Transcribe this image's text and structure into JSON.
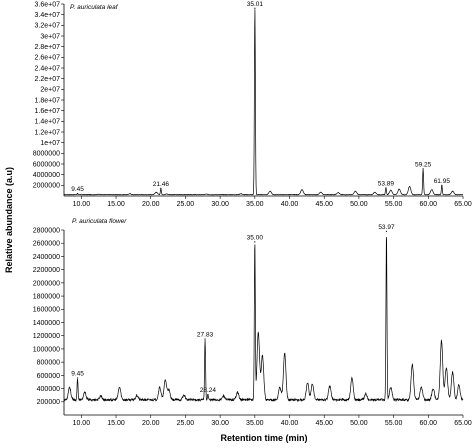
{
  "figure": {
    "ylabel": "Relative abundance (a.u)",
    "xlabel": "Retention time (min)"
  },
  "chart_data": [
    {
      "type": "line",
      "title": "P. auriculata leaf",
      "xlabel": "",
      "ylabel": "Relative abundance (a.u)",
      "xlim": [
        7.5,
        65.0
      ],
      "ylim": [
        0,
        36000000
      ],
      "x_ticks": [
        "10.00",
        "15.00",
        "20.00",
        "25.00",
        "30.00",
        "35.00",
        "40.00",
        "45.00",
        "50.00",
        "55.00",
        "60.00",
        "65.00"
      ],
      "y_ticks": [
        {
          "value": 2000000,
          "label": "2000000"
        },
        {
          "value": 4000000,
          "label": "4000000"
        },
        {
          "value": 6000000,
          "label": "6000000"
        },
        {
          "value": 8000000,
          "label": "8000000"
        },
        {
          "value": 10000000,
          "label": "1e+07"
        },
        {
          "value": 12000000,
          "label": "1.2e+07"
        },
        {
          "value": 14000000,
          "label": "1.4e+07"
        },
        {
          "value": 16000000,
          "label": "1.6e+07"
        },
        {
          "value": 18000000,
          "label": "1.8e+07"
        },
        {
          "value": 20000000,
          "label": "2e+07"
        },
        {
          "value": 22000000,
          "label": "2.2e+07"
        },
        {
          "value": 24000000,
          "label": "2.4e+07"
        },
        {
          "value": 26000000,
          "label": "2.6e+07"
        },
        {
          "value": 28000000,
          "label": "2.8e+07"
        },
        {
          "value": 30000000,
          "label": "3e+07"
        },
        {
          "value": 32000000,
          "label": "3.2e+07"
        },
        {
          "value": 34000000,
          "label": "3.4e+07"
        },
        {
          "value": 36000000,
          "label": "3.6e+07"
        }
      ],
      "baseline": 250000,
      "peaks": [
        {
          "x": 9.45,
          "y": 450000,
          "label": "9.45"
        },
        {
          "x": 21.46,
          "y": 1400000,
          "label": "21.46"
        },
        {
          "x": 35.01,
          "y": 35200000,
          "label": "35.01"
        },
        {
          "x": 53.89,
          "y": 1500000,
          "label": "53.89"
        },
        {
          "x": 59.25,
          "y": 5100000,
          "label": "59.25"
        },
        {
          "x": 61.95,
          "y": 2000000,
          "label": "61.95"
        }
      ],
      "minor_peaks": [
        {
          "x": 12.5,
          "y": 320000
        },
        {
          "x": 17.0,
          "y": 420000
        },
        {
          "x": 20.8,
          "y": 700000
        },
        {
          "x": 22.3,
          "y": 380000
        },
        {
          "x": 28.0,
          "y": 350000
        },
        {
          "x": 33.0,
          "y": 420000
        },
        {
          "x": 37.2,
          "y": 900000
        },
        {
          "x": 41.8,
          "y": 1200000
        },
        {
          "x": 44.5,
          "y": 700000
        },
        {
          "x": 47.0,
          "y": 650000
        },
        {
          "x": 49.5,
          "y": 900000
        },
        {
          "x": 52.3,
          "y": 700000
        },
        {
          "x": 54.6,
          "y": 1100000
        },
        {
          "x": 55.8,
          "y": 1300000
        },
        {
          "x": 57.3,
          "y": 1800000
        },
        {
          "x": 60.5,
          "y": 1200000
        },
        {
          "x": 63.5,
          "y": 900000
        }
      ]
    },
    {
      "type": "line",
      "title": "P. auriculata flower",
      "xlabel": "Retention time (min)",
      "ylabel": "Relative abundance (a.u)",
      "xlim": [
        7.5,
        65.0
      ],
      "ylim": [
        0,
        2800000
      ],
      "x_ticks": [
        "10.00",
        "15.00",
        "20.00",
        "25.00",
        "30.00",
        "35.00",
        "40.00",
        "45.00",
        "50.00",
        "55.00",
        "60.00",
        "65.00"
      ],
      "y_ticks": [
        {
          "value": 200000,
          "label": "200000"
        },
        {
          "value": 400000,
          "label": "400000"
        },
        {
          "value": 600000,
          "label": "600000"
        },
        {
          "value": 800000,
          "label": "800000"
        },
        {
          "value": 1000000,
          "label": "1000000"
        },
        {
          "value": 1200000,
          "label": "1200000"
        },
        {
          "value": 1400000,
          "label": "1400000"
        },
        {
          "value": 1600000,
          "label": "1600000"
        },
        {
          "value": 1800000,
          "label": "1800000"
        },
        {
          "value": 2000000,
          "label": "2000000"
        },
        {
          "value": 2200000,
          "label": "2200000"
        },
        {
          "value": 2400000,
          "label": "2400000"
        },
        {
          "value": 2600000,
          "label": "2600000"
        },
        {
          "value": 2800000,
          "label": "2800000"
        }
      ],
      "baseline": 230000,
      "peaks": [
        {
          "x": 9.45,
          "y": 560000,
          "label": "9.45"
        },
        {
          "x": 27.83,
          "y": 1150000,
          "label": "27.83"
        },
        {
          "x": 28.24,
          "y": 310000,
          "label": "28.24"
        },
        {
          "x": 35.0,
          "y": 2620000,
          "label": "35.00"
        },
        {
          "x": 53.97,
          "y": 2780000,
          "label": "53.97"
        }
      ],
      "minor_peaks": [
        {
          "x": 8.3,
          "y": 420000
        },
        {
          "x": 10.5,
          "y": 340000
        },
        {
          "x": 12.8,
          "y": 290000
        },
        {
          "x": 15.5,
          "y": 420000
        },
        {
          "x": 18.0,
          "y": 300000
        },
        {
          "x": 21.3,
          "y": 420000
        },
        {
          "x": 22.1,
          "y": 530000
        },
        {
          "x": 22.6,
          "y": 380000
        },
        {
          "x": 24.8,
          "y": 300000
        },
        {
          "x": 30.5,
          "y": 290000
        },
        {
          "x": 32.5,
          "y": 350000
        },
        {
          "x": 35.5,
          "y": 1250000
        },
        {
          "x": 36.1,
          "y": 900000
        },
        {
          "x": 38.6,
          "y": 420000
        },
        {
          "x": 39.3,
          "y": 930000
        },
        {
          "x": 42.6,
          "y": 480000
        },
        {
          "x": 43.3,
          "y": 470000
        },
        {
          "x": 45.8,
          "y": 440000
        },
        {
          "x": 49.0,
          "y": 560000
        },
        {
          "x": 51.0,
          "y": 320000
        },
        {
          "x": 54.6,
          "y": 420000
        },
        {
          "x": 57.7,
          "y": 760000
        },
        {
          "x": 59.0,
          "y": 420000
        },
        {
          "x": 60.7,
          "y": 400000
        },
        {
          "x": 61.9,
          "y": 1130000
        },
        {
          "x": 62.6,
          "y": 720000
        },
        {
          "x": 63.5,
          "y": 650000
        },
        {
          "x": 64.4,
          "y": 450000
        }
      ]
    }
  ]
}
